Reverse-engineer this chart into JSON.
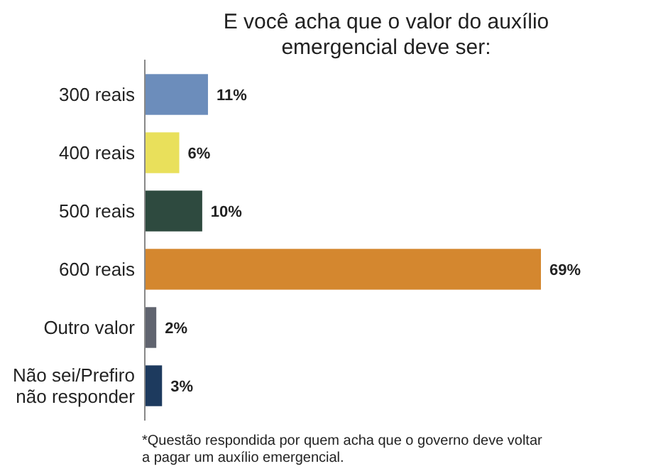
{
  "chart_data": {
    "type": "bar",
    "orientation": "horizontal",
    "title": "E você acha que o valor do auxílio\nemergencial deve ser:",
    "categories": [
      "300 reais",
      "400 reais",
      "500 reais",
      "600 reais",
      "Outro valor",
      "Não sei/Prefiro não responder"
    ],
    "values": [
      11,
      6,
      10,
      69,
      2,
      3
    ],
    "colors": [
      "#6c8dbb",
      "#e9e05b",
      "#2e4a3f",
      "#d4872f",
      "#60646f",
      "#1d3a5e"
    ],
    "value_labels": [
      "11%",
      "6%",
      "10%",
      "69%",
      "2%",
      "3%"
    ],
    "annotations": [
      "*Questão respondida por quem acha que o governo deve voltar\na pagar um auxílio emergencial."
    ]
  }
}
